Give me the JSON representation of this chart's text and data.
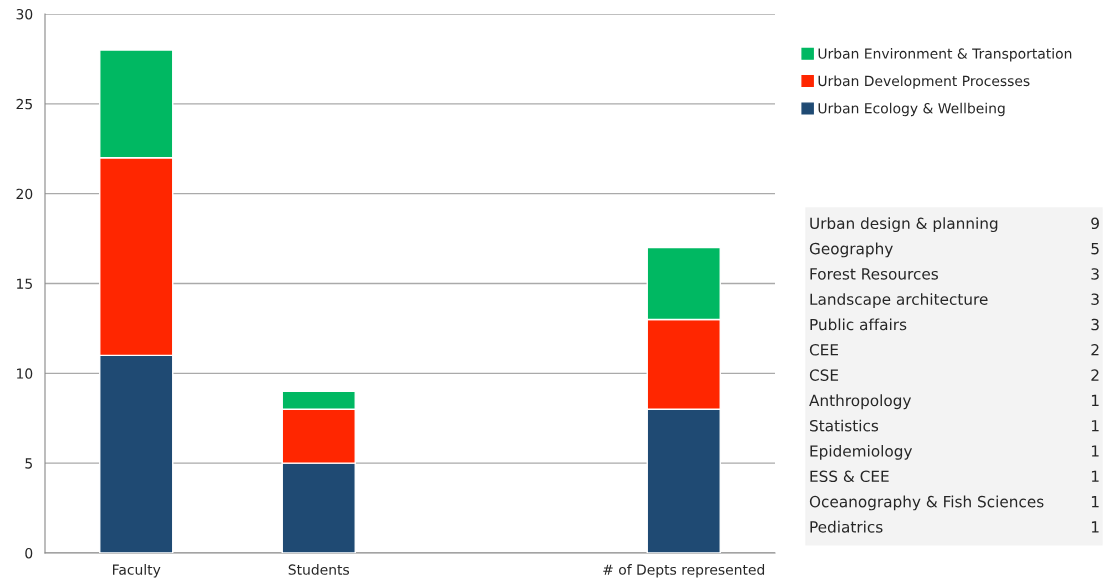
{
  "chart_data": {
    "type": "bar",
    "stacked": true,
    "categories": [
      "Faculty",
      "Students",
      null,
      "# of Depts represented"
    ],
    "series": [
      {
        "name": "Urban Ecology & Wellbeing",
        "color": "#1f4a73",
        "values": [
          11,
          5,
          null,
          8
        ]
      },
      {
        "name": "Urban Development Processes",
        "color": "#ff2600",
        "values": [
          11,
          3,
          null,
          5
        ]
      },
      {
        "name": "Urban Environment & Transportation",
        "color": "#00b862",
        "values": [
          6,
          1,
          null,
          4
        ]
      }
    ],
    "ylim": [
      0,
      30
    ],
    "yticks": [
      0,
      5,
      10,
      15,
      20,
      25,
      30
    ],
    "grid": "y",
    "legend": "top right",
    "annotations": [
      "Urban design & planning",
      "9",
      "Geography",
      "5",
      "Forest Resources",
      "3",
      "Landscape architecture",
      "3",
      "Public affairs",
      "3",
      "CEE",
      "2",
      "CSE",
      "2",
      "Anthropology",
      "1",
      "Statistics",
      "1",
      "Epidemiology",
      "1",
      "ESS & CEE",
      "1",
      "Oceanography & Fish Sciences",
      "1",
      "Pediatrics",
      "1"
    ]
  }
}
